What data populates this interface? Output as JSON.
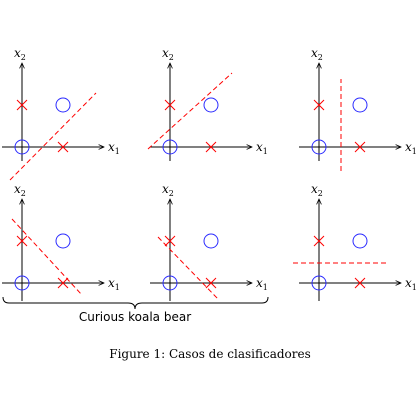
{
  "axis": {
    "x_symbol": "x",
    "x_sub": "1",
    "y_symbol": "x",
    "y_sub": "2"
  },
  "colors": {
    "circle": "#2b2bff",
    "cross": "#ff0000",
    "boundary": "#ff0000",
    "axis": "#000000"
  },
  "points": {
    "circles": [
      [
        0,
        0
      ],
      [
        1,
        1
      ]
    ],
    "crosses": [
      [
        0,
        1
      ],
      [
        1,
        0
      ]
    ]
  },
  "panels": [
    {
      "id": "top-left",
      "boundary": "diagonal-ascending"
    },
    {
      "id": "top-middle",
      "boundary": "diagonal-ascending-high"
    },
    {
      "id": "top-right",
      "boundary": "vertical"
    },
    {
      "id": "bottom-left",
      "boundary": "diagonal-descending"
    },
    {
      "id": "bottom-middle",
      "boundary": "diagonal-descending-low"
    },
    {
      "id": "bottom-right",
      "boundary": "horizontal"
    }
  ],
  "brace_label": "Curious koala bear",
  "caption": "Figure 1:  Casos de clasificadores"
}
